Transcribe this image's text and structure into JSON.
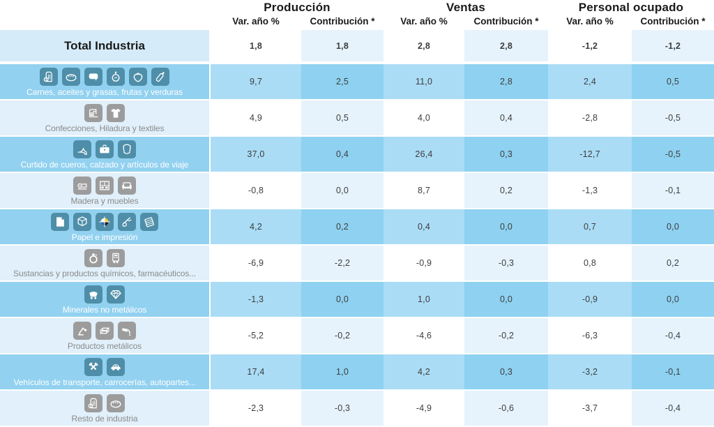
{
  "header": {
    "groups": [
      {
        "label": "Producción"
      },
      {
        "label": "Ventas"
      },
      {
        "label": "Personal ocupado"
      }
    ],
    "subheaders": [
      "Var. año %",
      "Contribución *",
      "Var. año %",
      "Contribución *",
      "Var. año %",
      "Contribución *"
    ]
  },
  "total_row": {
    "label": "Total Industria",
    "values": [
      "1,8",
      "1,8",
      "2,8",
      "2,8",
      "-1,2",
      "-1,2"
    ]
  },
  "rows": [
    {
      "label": "Carnes, aceites y grasas, frutas y verduras",
      "highlight": true,
      "icons": [
        "flour-bag",
        "bread",
        "cow",
        "oil-bottle",
        "strawberry",
        "bottle"
      ],
      "values": [
        "9,7",
        "2,5",
        "11,0",
        "2,8",
        "2,4",
        "0,5"
      ]
    },
    {
      "label": "Confecciones, Hiladura y textiles",
      "highlight": false,
      "icons": [
        "sewing-machine",
        "tshirt"
      ],
      "values": [
        "4,9",
        "0,5",
        "4,0",
        "0,4",
        "-2,8",
        "-0,5"
      ]
    },
    {
      "label": "Curtido de cueros, calzado y artículos de viaje",
      "highlight": true,
      "icons": [
        "high-heel-shoe",
        "briefcase",
        "leather-hide"
      ],
      "values": [
        "37,0",
        "0,4",
        "26,4",
        "0,3",
        "-12,7",
        "-0,5"
      ]
    },
    {
      "label": "Madera y muebles",
      "highlight": false,
      "icons": [
        "woodworking-machine",
        "cabinet",
        "sofa"
      ],
      "values": [
        "-0,8",
        "0,0",
        "8,7",
        "0,2",
        "-1,3",
        "-0,1"
      ]
    },
    {
      "label": "Papel e impresión",
      "highlight": true,
      "icons": [
        "paper-sheet",
        "cardboard-box",
        "registration-mark",
        "guillotine-cutter",
        "notebook"
      ],
      "values": [
        "4,2",
        "0,2",
        "0,4",
        "0,0",
        "0,7",
        "0,0"
      ]
    },
    {
      "label": "Sustancias y productos químicos, farmacéuticos...",
      "highlight": false,
      "icons": [
        "flask",
        "pharma-machine"
      ],
      "values": [
        "-6,9",
        "-2,2",
        "-0,9",
        "-0,3",
        "0,8",
        "0,2"
      ]
    },
    {
      "label": "Minerales no metálicos",
      "highlight": true,
      "icons": [
        "mine-cart",
        "diamond"
      ],
      "values": [
        "-1,3",
        "0,0",
        "1,0",
        "0,0",
        "-0,9",
        "0,0"
      ]
    },
    {
      "label": "Productos metálicos",
      "highlight": false,
      "icons": [
        "robot-arm",
        "steel-beam",
        "crucible"
      ],
      "values": [
        "-5,2",
        "-0,2",
        "-4,6",
        "-0,2",
        "-6,3",
        "-0,4"
      ]
    },
    {
      "label": "Vehículos de transporte, carrocerías, autopartes...",
      "highlight": true,
      "icons": [
        "crossed-pistons",
        "car"
      ],
      "values": [
        "17,4",
        "1,0",
        "4,2",
        "0,3",
        "-3,2",
        "-0,1"
      ]
    },
    {
      "label": "Resto de industria",
      "highlight": false,
      "icons": [
        "flour-bag",
        "bread"
      ],
      "values": [
        "-2,3",
        "-0,3",
        "-4,9",
        "-0,6",
        "-3,7",
        "-0,4"
      ]
    }
  ],
  "colors": {
    "row-blue-label": "#92d1f0",
    "row-blue-var": "#aadcf6",
    "row-blue-contrib": "#8ed1f1",
    "row-light-label": "#e1f0fa",
    "row-light-var": "#ffffff",
    "row-light-contrib": "#e6f3fc",
    "total-label-bg": "#d6ebf9",
    "icon-teal": "#4f8ea8",
    "icon-gray": "#9c9c9c",
    "header-text": "#1a1a1a",
    "value-text": "#3d3d3d",
    "label-light-text": "#8a8a8a",
    "label-blue-text": "#ffffff"
  },
  "chart_data": {
    "type": "table",
    "column_groups": [
      "Producción",
      "Ventas",
      "Personal ocupado"
    ],
    "columns": [
      "Producción Var. año %",
      "Producción Contribución *",
      "Ventas Var. año %",
      "Ventas Contribución *",
      "Personal ocupado Var. año %",
      "Personal ocupado Contribución *"
    ],
    "rows": [
      {
        "label": "Total Industria",
        "values": [
          1.8,
          1.8,
          2.8,
          2.8,
          -1.2,
          -1.2
        ]
      },
      {
        "label": "Carnes, aceites y grasas, frutas y verduras",
        "values": [
          9.7,
          2.5,
          11.0,
          2.8,
          2.4,
          0.5
        ]
      },
      {
        "label": "Confecciones, Hiladura y textiles",
        "values": [
          4.9,
          0.5,
          4.0,
          0.4,
          -2.8,
          -0.5
        ]
      },
      {
        "label": "Curtido de cueros, calzado y artículos de viaje",
        "values": [
          37.0,
          0.4,
          26.4,
          0.3,
          -12.7,
          -0.5
        ]
      },
      {
        "label": "Madera y muebles",
        "values": [
          -0.8,
          0.0,
          8.7,
          0.2,
          -1.3,
          -0.1
        ]
      },
      {
        "label": "Papel e impresión",
        "values": [
          4.2,
          0.2,
          0.4,
          0.0,
          0.7,
          0.0
        ]
      },
      {
        "label": "Sustancias y productos químicos, farmacéuticos...",
        "values": [
          -6.9,
          -2.2,
          -0.9,
          -0.3,
          0.8,
          0.2
        ]
      },
      {
        "label": "Minerales no metálicos",
        "values": [
          -1.3,
          0.0,
          1.0,
          0.0,
          -0.9,
          0.0
        ]
      },
      {
        "label": "Productos metálicos",
        "values": [
          -5.2,
          -0.2,
          -4.6,
          -0.2,
          -6.3,
          -0.4
        ]
      },
      {
        "label": "Vehículos de transporte, carrocerías, autopartes...",
        "values": [
          17.4,
          1.0,
          4.2,
          0.3,
          -3.2,
          -0.1
        ]
      },
      {
        "label": "Resto de industria",
        "values": [
          -2.3,
          -0.3,
          -4.9,
          -0.6,
          -3.7,
          -0.4
        ]
      }
    ],
    "notes": "Decimal comma formatting; asterisk marks contribution columns"
  }
}
